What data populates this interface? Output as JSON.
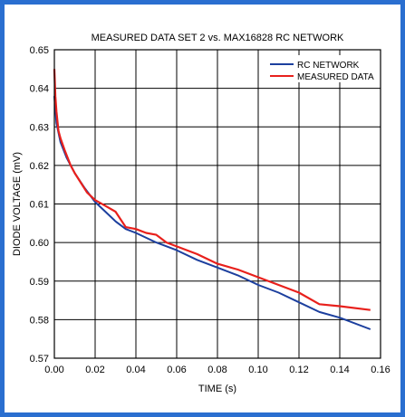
{
  "chart_data": {
    "type": "line",
    "title": "MEASURED DATA SET 2 vs. MAX16828 RC NETWORK",
    "xlabel": "TIME (s)",
    "ylabel": "DIODE VOLTAGE (mV)",
    "xlim": [
      0,
      0.16
    ],
    "ylim": [
      0.57,
      0.65
    ],
    "xticks": [
      0,
      0.02,
      0.04,
      0.06,
      0.08,
      0.1,
      0.12,
      0.14,
      0.16
    ],
    "xtick_labels": [
      "0.00",
      "0.02",
      "0.04",
      "0.06",
      "0.08",
      "0.10",
      "0.12",
      "0.14",
      "0.16"
    ],
    "yticks": [
      0.57,
      0.58,
      0.59,
      0.6,
      0.61,
      0.62,
      0.63,
      0.64,
      0.65
    ],
    "ytick_labels": [
      "0.57",
      "0.58",
      "0.59",
      "0.60",
      "0.61",
      "0.62",
      "0.63",
      "0.64",
      "0.65"
    ],
    "grid": true,
    "legend_position": "top-right",
    "series": [
      {
        "name": "RC NETWORK",
        "color": "#1c3f9e",
        "x": [
          0,
          0.001,
          0.003,
          0.006,
          0.01,
          0.015,
          0.02,
          0.025,
          0.03,
          0.035,
          0.04,
          0.05,
          0.06,
          0.07,
          0.08,
          0.09,
          0.1,
          0.11,
          0.12,
          0.13,
          0.14,
          0.155
        ],
        "y": [
          0.638,
          0.631,
          0.626,
          0.622,
          0.618,
          0.614,
          0.6105,
          0.608,
          0.6055,
          0.6035,
          0.6025,
          0.6,
          0.598,
          0.5955,
          0.5935,
          0.5915,
          0.589,
          0.587,
          0.5845,
          0.582,
          0.5805,
          0.5775
        ]
      },
      {
        "name": "MEASURED DATA",
        "color": "#e8201c",
        "x": [
          0,
          0.0005,
          0.001,
          0.002,
          0.003,
          0.005,
          0.008,
          0.01,
          0.013,
          0.016,
          0.02,
          0.025,
          0.03,
          0.035,
          0.04,
          0.045,
          0.05,
          0.055,
          0.06,
          0.07,
          0.08,
          0.09,
          0.1,
          0.11,
          0.12,
          0.13,
          0.14,
          0.155
        ],
        "y": [
          0.645,
          0.638,
          0.634,
          0.629,
          0.627,
          0.624,
          0.62,
          0.618,
          0.6155,
          0.613,
          0.611,
          0.6095,
          0.608,
          0.604,
          0.6035,
          0.6025,
          0.602,
          0.6,
          0.599,
          0.597,
          0.5945,
          0.593,
          0.591,
          0.589,
          0.587,
          0.584,
          0.5835,
          0.5825
        ]
      }
    ]
  }
}
